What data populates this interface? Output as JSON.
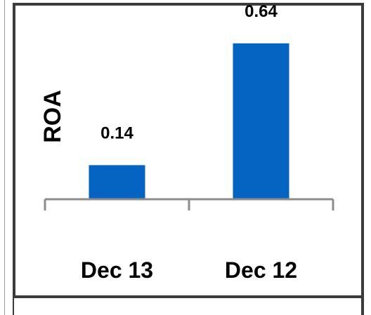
{
  "chart_data": {
    "type": "bar",
    "categories": [
      "Dec 13",
      "Dec 12"
    ],
    "values": [
      0.14,
      0.64
    ],
    "data_labels": [
      "0.14",
      "0.64"
    ],
    "title": "",
    "xlabel": "",
    "ylabel": "ROA",
    "ylim": [
      0,
      0.72
    ],
    "grid": false,
    "legend": "none",
    "bar_color": "#0563C1",
    "axis_color": "#8C8C8C"
  }
}
